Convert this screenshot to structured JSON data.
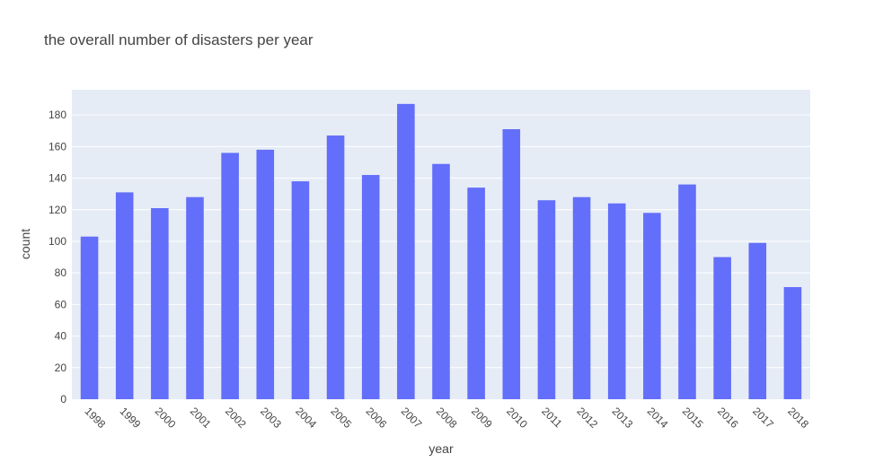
{
  "chart_data": {
    "type": "bar",
    "title": "the overall number of disasters per year",
    "xlabel": "year",
    "ylabel": "count",
    "categories": [
      "1998",
      "1999",
      "2000",
      "2001",
      "2002",
      "2003",
      "2004",
      "2005",
      "2006",
      "2007",
      "2008",
      "2009",
      "2010",
      "2011",
      "2012",
      "2013",
      "2014",
      "2015",
      "2016",
      "2017",
      "2018"
    ],
    "values": [
      103,
      131,
      121,
      128,
      156,
      158,
      138,
      167,
      142,
      187,
      149,
      134,
      171,
      126,
      128,
      124,
      118,
      136,
      90,
      99,
      71
    ],
    "yticks": [
      0,
      20,
      40,
      60,
      80,
      100,
      120,
      140,
      160,
      180
    ],
    "ylim": [
      0,
      196
    ],
    "grid": true,
    "colors": {
      "bar": "#636efa",
      "plot_bg": "#e5ecf6",
      "grid": "#ffffff",
      "text": "#444444"
    }
  }
}
